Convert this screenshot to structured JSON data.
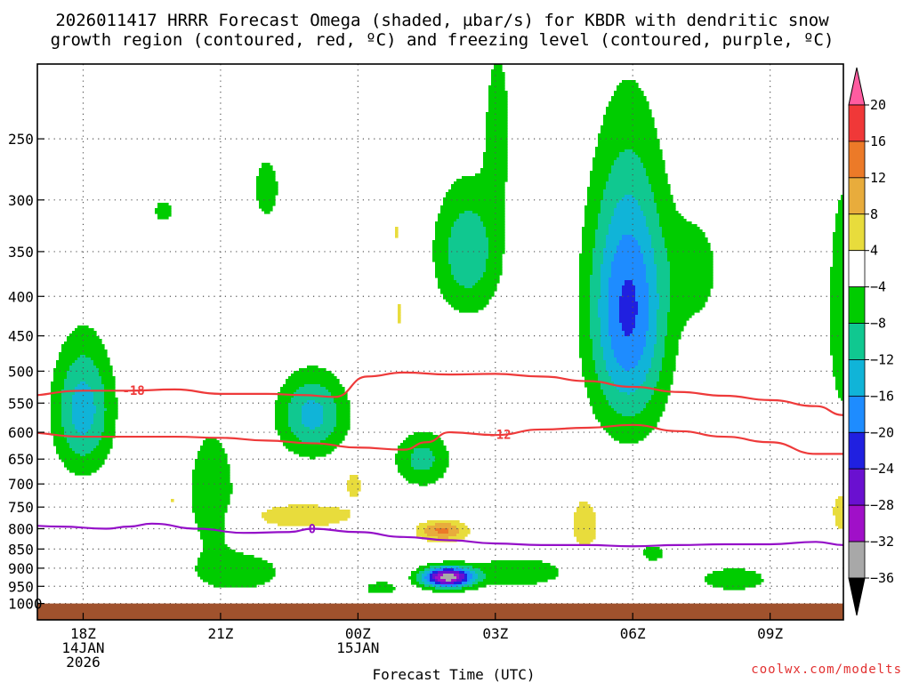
{
  "title_line1": "2026011417 HRRR Forecast Omega (shaded, µbar/s) for KBDR with dendritic snow",
  "title_line2": "growth region (contoured, red, ºC) and freezing level (contoured, purple, ºC)",
  "footer": "coolwx.com/modelts",
  "chart_data": {
    "type": "heatmap",
    "title": "2026011417 HRRR Forecast Omega (shaded, µbar/s) for KBDR with dendritic snow growth region (contoured, red, ºC) and freezing level (contoured, purple, ºC)",
    "xlabel": "Forecast Time (UTC)",
    "ylabel": "",
    "x_unit": "hours after 2026-01-14 17Z",
    "xlim": [
      0,
      17.6
    ],
    "ylim": [
      1050,
      200
    ],
    "y_scale": "log",
    "grid": true,
    "x_ticks": [
      {
        "x": 1,
        "lines": [
          "18Z",
          "14JAN",
          "2026"
        ]
      },
      {
        "x": 4,
        "lines": [
          "21Z"
        ]
      },
      {
        "x": 7,
        "lines": [
          "00Z",
          "15JAN"
        ]
      },
      {
        "x": 10,
        "lines": [
          "03Z"
        ]
      },
      {
        "x": 13,
        "lines": [
          "06Z"
        ]
      },
      {
        "x": 16,
        "lines": [
          "09Z"
        ]
      }
    ],
    "y_ticks": [
      250,
      300,
      350,
      400,
      450,
      500,
      550,
      600,
      650,
      700,
      750,
      800,
      850,
      900,
      950,
      1000
    ],
    "colorbar": {
      "unit": "µbar/s",
      "ticks": [
        "20",
        "16",
        "12",
        "8",
        "4",
        "−4",
        "−8",
        "−12",
        "−16",
        "−20",
        "−24",
        "−28",
        "−32",
        "−36"
      ],
      "bins": [
        {
          "color": "#ff5ca0",
          "label": ">20"
        },
        {
          "color": "#f03838",
          "label": "16 to 20"
        },
        {
          "color": "#ec7a28",
          "label": "12 to 16"
        },
        {
          "color": "#e8ac3c",
          "label": "8 to 12"
        },
        {
          "color": "#e8dc3c",
          "label": "4 to 8"
        },
        {
          "color": "#ffffff",
          "label": "-4 to 4"
        },
        {
          "color": "#00cc00",
          "label": "-8 to -4"
        },
        {
          "color": "#10c890",
          "label": "-12 to -8"
        },
        {
          "color": "#10b4d8",
          "label": "-16 to -12"
        },
        {
          "color": "#1e8cff",
          "label": "-20 to -16"
        },
        {
          "color": "#2020e0",
          "label": "-24 to -20"
        },
        {
          "color": "#6a10d0",
          "label": "-28 to -24"
        },
        {
          "color": "#a010c8",
          "label": "-32 to -28"
        },
        {
          "color": "#a8a8a8",
          "label": "-36 to -32"
        },
        {
          "color": "#000000",
          "label": "<-36"
        }
      ]
    },
    "terrain_color": "#a0522d",
    "surface_pressure": 1000,
    "omega_cells": [
      {
        "name": "cell-18z-mid",
        "x": 1,
        "p": 560,
        "sx": 0.65,
        "sp": 110,
        "peak": -14
      },
      {
        "name": "cell-1930-upper",
        "x": 2.75,
        "p": 310,
        "sx": 0.3,
        "sp": 14,
        "peak": -5.5
      },
      {
        "name": "cell-22z-upper",
        "x": 5,
        "p": 290,
        "sx": 0.35,
        "sp": 35,
        "peak": -6
      },
      {
        "name": "cell-2030-column",
        "x": 3.8,
        "p": 720,
        "sx": 0.55,
        "sp": 140,
        "peak": -7.5
      },
      {
        "name": "cell-2330-mid",
        "x": 6.0,
        "p": 570,
        "sx": 0.75,
        "sp": 70,
        "peak": -13.5
      },
      {
        "name": "cell-2030-low",
        "x": 4.4,
        "p": 910,
        "sx": 1.0,
        "sp": 55,
        "peak": -7.5
      },
      {
        "name": "cell-0030-low",
        "x": 7.5,
        "p": 955,
        "sx": 0.45,
        "sp": 25,
        "peak": -6
      },
      {
        "name": "cell-0230-upper",
        "x": 9.4,
        "p": 350,
        "sx": 0.75,
        "sp": 70,
        "peak": -11
      },
      {
        "name": "cell-03z-top",
        "x": 10.05,
        "p": 240,
        "sx": 0.3,
        "sp": 60,
        "peak": -6.5
      },
      {
        "name": "cell-0130-mid",
        "x": 8.4,
        "p": 650,
        "sx": 0.62,
        "sp": 55,
        "peak": -9.5
      },
      {
        "name": "cell-02z-core",
        "x": 8.95,
        "p": 925,
        "sx": 0.55,
        "sp": 28,
        "peak": -34
      },
      {
        "name": "cell-0330-low",
        "x": 10.5,
        "p": 910,
        "sx": 1.2,
        "sp": 45,
        "peak": -7
      },
      {
        "name": "cell-06z-upper",
        "x": 12.9,
        "p": 415,
        "sx": 0.85,
        "sp": 160,
        "peak": -21
      },
      {
        "name": "cell-07z-upper",
        "x": 14.4,
        "p": 370,
        "sx": 0.55,
        "sp": 60,
        "peak": -6
      },
      {
        "name": "cell-0630-low",
        "x": 13.45,
        "p": 860,
        "sx": 0.45,
        "sp": 35,
        "peak": -5
      },
      {
        "name": "cell-08z-low",
        "x": 15.2,
        "p": 930,
        "sx": 0.9,
        "sp": 40,
        "peak": -6.5
      },
      {
        "name": "cell-10z-edge",
        "x": 17.6,
        "p": 420,
        "sx": 0.35,
        "sp": 150,
        "peak": -8
      },
      {
        "name": "warm-22z-low",
        "x": 5.8,
        "p": 770,
        "sx": 1.25,
        "sp": 33,
        "peak": 7
      },
      {
        "name": "warm-0030-mid",
        "x": 6.9,
        "p": 700,
        "sx": 0.3,
        "sp": 45,
        "peak": 5
      },
      {
        "name": "warm-02z-low",
        "x": 8.85,
        "p": 805,
        "sx": 0.55,
        "sp": 25,
        "peak": 13
      },
      {
        "name": "warm-0430-low",
        "x": 11.95,
        "p": 790,
        "sx": 0.4,
        "sp": 85,
        "peak": 6
      },
      {
        "name": "warm-01z-upper",
        "x": 7.85,
        "p": 330,
        "sx": 0.09,
        "sp": 14,
        "peak": 5
      },
      {
        "name": "warm-01z-mid",
        "x": 7.88,
        "p": 420,
        "sx": 0.08,
        "sp": 30,
        "peak": 5
      },
      {
        "name": "warm-1930-low",
        "x": 2.95,
        "p": 735,
        "sx": 0.09,
        "sp": 15,
        "peak": 5
      },
      {
        "name": "warm-1930-sfc",
        "x": 2.9,
        "p": 905,
        "sx": 0.09,
        "sp": 12,
        "peak": 5
      },
      {
        "name": "warm-10z-edge",
        "x": 17.55,
        "p": 760,
        "sx": 0.25,
        "sp": 60,
        "peak": 6
      }
    ],
    "series": [
      {
        "name": "-18",
        "color": "#ee3a3a",
        "label_x": 2.1,
        "x": [
          -0.35,
          1.0,
          2.0,
          3.0,
          4.0,
          5.0,
          5.8,
          6.5,
          7.2,
          8.0,
          9.0,
          10.0,
          11.0,
          12.0,
          13.0,
          14.0,
          15.0,
          16.0,
          17.0,
          17.6
        ],
        "y": [
          538,
          530,
          530,
          528,
          535,
          535,
          537,
          540,
          508,
          502,
          505,
          504,
          508,
          515,
          524,
          532,
          538,
          545,
          555,
          570
        ]
      },
      {
        "name": "-12",
        "color": "#ee3a3a",
        "label_x": 10.1,
        "x": [
          -0.35,
          1.0,
          2.0,
          3.0,
          4.0,
          5.0,
          6.0,
          7.0,
          8.0,
          8.5,
          9.0,
          10.0,
          11.0,
          12.0,
          13.0,
          14.0,
          15.0,
          16.0,
          17.0,
          17.6
        ],
        "y": [
          600,
          608,
          608,
          608,
          610,
          615,
          620,
          628,
          632,
          618,
          600,
          605,
          595,
          592,
          587,
          598,
          608,
          618,
          640,
          640
        ]
      },
      {
        "name": "0",
        "color": "#9410c8",
        "label_x": 6.0,
        "x": [
          -0.35,
          0.5,
          1.5,
          2.0,
          2.5,
          3.5,
          4.5,
          5.5,
          6.0,
          7.0,
          8.0,
          9.0,
          10.0,
          11.0,
          12.0,
          13.0,
          14.0,
          15.0,
          16.0,
          17.0,
          17.6
        ],
        "y": [
          792,
          795,
          800,
          795,
          788,
          800,
          810,
          808,
          800,
          808,
          820,
          828,
          836,
          840,
          840,
          843,
          840,
          838,
          838,
          832,
          840
        ]
      }
    ]
  }
}
